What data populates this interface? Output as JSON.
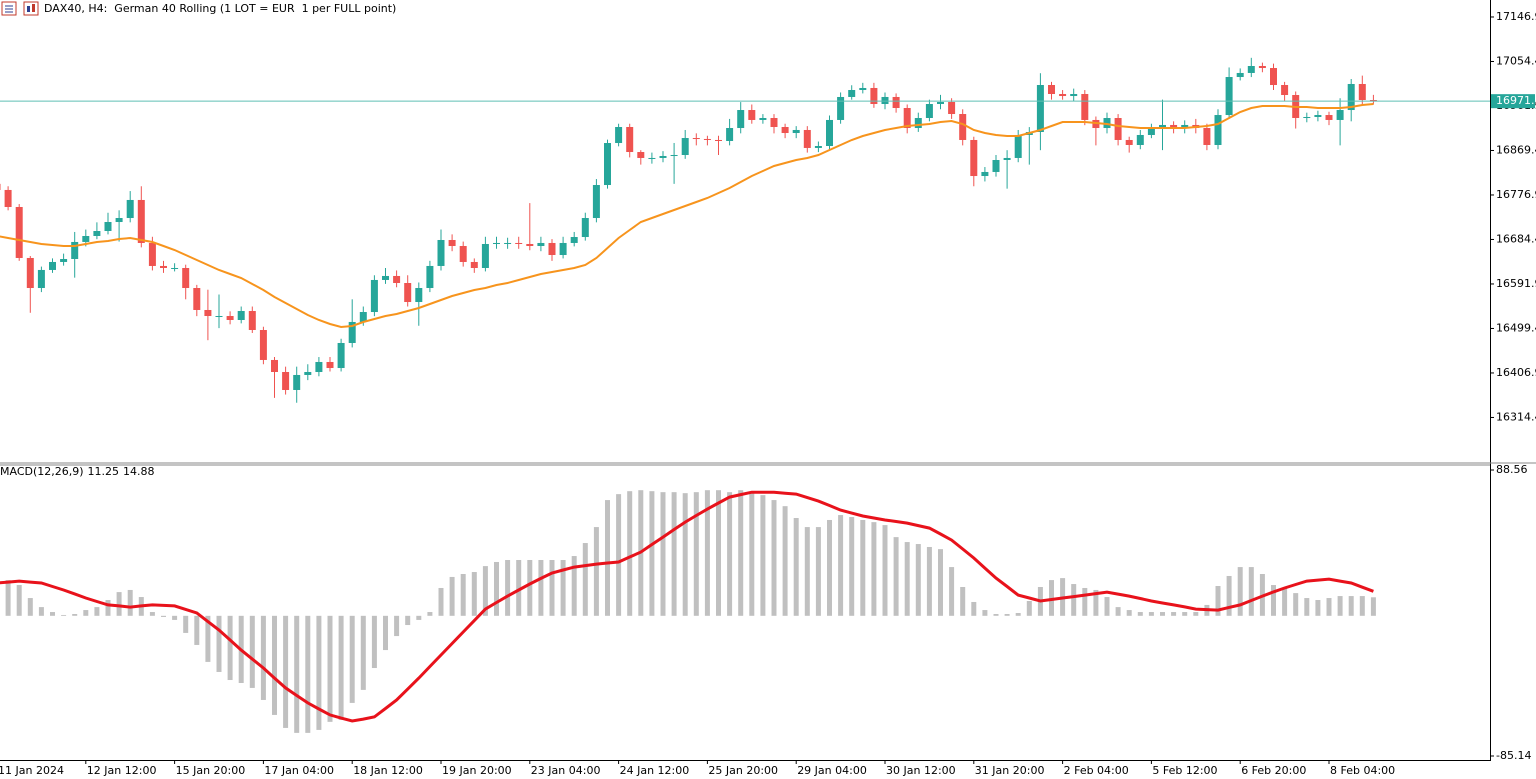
{
  "chart_data": [
    {
      "type": "candlestick",
      "title": "DAX40, H4:  German 40 Rolling (1 LOT = EUR  1 per FULL point)",
      "categories": [
        "11 Jan 2024",
        null,
        null,
        null,
        null,
        null,
        null,
        null,
        "12 Jan 12:00",
        null,
        null,
        null,
        null,
        null,
        null,
        null,
        "15 Jan 20:00",
        null,
        null,
        null,
        null,
        null,
        null,
        null,
        "17 Jan 04:00",
        null,
        null,
        null,
        null,
        null,
        null,
        null,
        "18 Jan 12:00",
        null,
        null,
        null,
        null,
        null,
        null,
        null,
        "19 Jan 20:00",
        null,
        null,
        null,
        null,
        null,
        null,
        null,
        "23 Jan 04:00",
        null,
        null,
        null,
        null,
        null,
        null,
        null,
        "24 Jan 12:00",
        null,
        null,
        null,
        null,
        null,
        null,
        null,
        "25 Jan 20:00",
        null,
        null,
        null,
        null,
        null,
        null,
        null,
        "29 Jan 04:00",
        null,
        null,
        null,
        null,
        null,
        null,
        null,
        "30 Jan 12:00",
        null,
        null,
        null,
        null,
        null,
        null,
        null,
        "31 Jan 20:00",
        null,
        null,
        null,
        null,
        null,
        null,
        null,
        "2 Feb 04:00",
        null,
        null,
        null,
        null,
        null,
        null,
        null,
        "5 Feb 12:00",
        null,
        null,
        null,
        null,
        null,
        null,
        null,
        "6 Feb 20:00",
        null,
        null,
        null,
        null,
        null,
        null,
        null,
        "8 Feb 04:00",
        null,
        null,
        null,
        null
      ],
      "open": [
        16800.0,
        16787.3,
        16751.9,
        16645.9,
        16583.5,
        16621.0,
        16637.6,
        16643.8,
        16679.2,
        16691.6,
        16702.0,
        16720.7,
        16729.0,
        16766.5,
        16677.1,
        16629.3,
        16625.1,
        16625.1,
        16583.5,
        16537.8,
        16525.3,
        16525.3,
        16517.0,
        16535.7,
        16496.2,
        16433.9,
        16408.9,
        16371.5,
        16402.7,
        16408.9,
        16429.7,
        16417.2,
        16469.2,
        16512.9,
        16533.6,
        16600.2,
        16608.5,
        16593.9,
        16554.4,
        16583.5,
        16629.3,
        16683.3,
        16670.8,
        16637.6,
        16625.1,
        16675.0,
        16677.1,
        16677.1,
        16675.0,
        16670.8,
        16677.1,
        16652.1,
        16677.1,
        16689.5,
        16729.0,
        16797.6,
        16884.9,
        16918.2,
        16866.2,
        16853.8,
        16853.8,
        16857.9,
        16860.0,
        16895.3,
        16893.3,
        16891.2,
        16889.1,
        16916.1,
        16953.5,
        16932.8,
        16936.9,
        16918.2,
        16905.7,
        16912.0,
        16874.6,
        16878.7,
        16932.8,
        16980.6,
        16995.1,
        16999.3,
        16966.0,
        16980.6,
        16957.7,
        16916.1,
        16936.9,
        16966.0,
        16970.2,
        16945.2,
        16891.2,
        16816.3,
        16824.7,
        16849.6,
        16853.8,
        16901.6,
        16907.8,
        17005.5,
        16986.8,
        16982.6,
        16986.8,
        16932.8,
        16916.1,
        16936.9,
        16891.2,
        16880.8,
        16901.6,
        16916.1,
        16922.4,
        16916.1,
        16922.4,
        16916.1,
        16880.8,
        16943.1,
        17022.1,
        17030.5,
        17045.0,
        17040.8,
        17005.5,
        16984.7,
        16936.9,
        16939.0,
        16943.1,
        16932.8,
        16953.5,
        17007.6,
        16974.3
      ],
      "high": [
        16815,
        16795,
        16758,
        16650,
        16628,
        16645,
        16655,
        16700,
        16705,
        16720,
        16740,
        16745,
        16785,
        16795,
        16690,
        16640,
        16635,
        16632,
        16590,
        16580,
        16570,
        16535,
        16545,
        16545,
        16503,
        16440,
        16420,
        16420,
        16425,
        16440,
        16440,
        16478,
        16560,
        16545,
        16610,
        16625,
        16620,
        16610,
        16595,
        16640,
        16705,
        16695,
        16680,
        16645,
        16690,
        16690,
        16688,
        16690,
        16760,
        16690,
        16685,
        16690,
        16700,
        16740,
        16810,
        16892,
        16925,
        16925,
        16870,
        16865,
        16868,
        16885,
        16912,
        16905,
        16900,
        16900,
        16935,
        16970,
        16965,
        16945,
        16945,
        16925,
        16920,
        16920,
        16888,
        16942,
        16990,
        17005,
        17010,
        17010,
        16990,
        16988,
        16965,
        16948,
        16975,
        16985,
        16978,
        16955,
        16898,
        16835,
        16860,
        16870,
        16912,
        16918,
        17030,
        17012,
        16995,
        16998,
        16995,
        16940,
        16948,
        16945,
        16898,
        16912,
        16925,
        16975,
        16930,
        16932,
        16935,
        16925,
        16955,
        17042,
        17040,
        17062,
        17052,
        17050,
        17012,
        16992,
        16948,
        16952,
        16950,
        16978,
        17018,
        17025,
        16985
      ],
      "low": [
        16778,
        16745,
        16640,
        16532,
        16575,
        16615,
        16630,
        16605,
        16670,
        16685,
        16695,
        16680,
        16720,
        16668,
        16620,
        16615,
        16618,
        16560,
        16525,
        16475,
        16500,
        16508,
        16510,
        16490,
        16425,
        16355,
        16362,
        16345,
        16392,
        16400,
        16410,
        16410,
        16460,
        16505,
        16525,
        16592,
        16585,
        16545,
        16505,
        16575,
        16620,
        16660,
        16628,
        16615,
        16618,
        16665,
        16665,
        16665,
        16662,
        16660,
        16640,
        16645,
        16670,
        16682,
        16720,
        16790,
        16878,
        16855,
        16840,
        16842,
        16845,
        16800,
        16852,
        16880,
        16880,
        16860,
        16880,
        16905,
        16925,
        16925,
        16905,
        16895,
        16895,
        16865,
        16866,
        16870,
        16925,
        16975,
        16988,
        16958,
        16955,
        16948,
        16905,
        16908,
        16930,
        16955,
        16935,
        16880,
        16795,
        16805,
        16815,
        16790,
        16845,
        16840,
        16870,
        16975,
        16975,
        16972,
        16922,
        16880,
        16905,
        16880,
        16865,
        16872,
        16895,
        16870,
        16905,
        16905,
        16905,
        16870,
        16872,
        16935,
        17015,
        17022,
        17032,
        16995,
        16972,
        16915,
        16928,
        16930,
        16922,
        16880,
        16930,
        16965,
        16965
      ],
      "close": [
        16787.3,
        16751.9,
        16645.9,
        16583.5,
        16621.0,
        16637.6,
        16643.8,
        16679.2,
        16691.6,
        16702.0,
        16720.7,
        16729.0,
        16766.5,
        16677.1,
        16629.3,
        16625.1,
        16625.1,
        16583.5,
        16537.8,
        16525.3,
        16525.3,
        16517.0,
        16535.7,
        16496.2,
        16433.9,
        16408.9,
        16371.5,
        16402.7,
        16408.9,
        16429.7,
        16417.2,
        16469.2,
        16512.9,
        16533.6,
        16600.2,
        16608.5,
        16593.9,
        16554.4,
        16583.5,
        16629.3,
        16683.3,
        16670.8,
        16637.6,
        16625.1,
        16675.0,
        16677.1,
        16677.1,
        16675.0,
        16670.8,
        16677.1,
        16652.1,
        16677.1,
        16689.5,
        16729.0,
        16797.6,
        16884.9,
        16918.2,
        16866.2,
        16853.8,
        16853.8,
        16857.9,
        16860.0,
        16895.3,
        16893.3,
        16891.2,
        16889.1,
        16916.1,
        16953.5,
        16932.8,
        16936.9,
        16918.2,
        16905.7,
        16912.0,
        16874.6,
        16878.7,
        16932.8,
        16980.6,
        16995.1,
        16999.3,
        16966.0,
        16980.6,
        16957.7,
        16916.1,
        16936.9,
        16966.0,
        16970.2,
        16945.2,
        16891.2,
        16816.3,
        16824.7,
        16849.6,
        16853.8,
        16901.6,
        16907.8,
        17005.5,
        16986.8,
        16982.6,
        16986.8,
        16932.8,
        16916.1,
        16936.9,
        16891.2,
        16880.8,
        16901.6,
        16916.1,
        16922.4,
        16916.1,
        16922.4,
        16916.1,
        16880.8,
        16943.1,
        17022.1,
        17030.5,
        17045.0,
        17040.8,
        17005.5,
        16984.7,
        16936.9,
        16939.0,
        16943.1,
        16932.8,
        16953.5,
        17007.6,
        16974.3,
        16971.9
      ],
      "up_color": "#26a69a",
      "down_color": "#ef5350",
      "ma": {
        "color": "#f7941d",
        "values": [
          16691.6,
          16687.5,
          16683.3,
          16679.2,
          16675.0,
          16672.9,
          16670.8,
          16670.8,
          16675.0,
          16679.2,
          16681.2,
          16685.4,
          16687.5,
          16683.3,
          16679.2,
          16670.8,
          16662.5,
          16652.1,
          16641.7,
          16631.3,
          16621.0,
          16612.6,
          16604.3,
          16591.8,
          16579.4,
          16564.8,
          16552.4,
          16539.9,
          16527.4,
          16517.0,
          16508.7,
          16502.5,
          16504.5,
          16512.9,
          16519.1,
          16525.3,
          16529.5,
          16535.7,
          16542.0,
          16550.3,
          16558.6,
          16566.9,
          16573.1,
          16579.4,
          16583.5,
          16589.8,
          16593.9,
          16600.2,
          16606.4,
          16612.6,
          16616.8,
          16621.0,
          16625.1,
          16631.3,
          16645.9,
          16666.7,
          16687.5,
          16704.1,
          16720.7,
          16729.0,
          16737.4,
          16745.7,
          16754.0,
          16762.3,
          16770.6,
          16781.0,
          16791.4,
          16803.9,
          16816.3,
          16826.7,
          16837.1,
          16843.4,
          16849.6,
          16853.8,
          16860.0,
          16870.4,
          16880.8,
          16891.2,
          16899.5,
          16905.7,
          16912.0,
          16916.1,
          16920.3,
          16922.4,
          16924.4,
          16928.6,
          16930.7,
          16924.4,
          16912.0,
          16905.7,
          16901.6,
          16899.5,
          16899.5,
          16905.7,
          16912.0,
          16920.3,
          16928.6,
          16928.6,
          16928.6,
          16926.5,
          16924.4,
          16920.3,
          16918.2,
          16916.1,
          16916.1,
          16916.1,
          16916.1,
          16916.1,
          16918.2,
          16920.3,
          16924.4,
          16936.9,
          16949.4,
          16957.7,
          16961.9,
          16961.9,
          16961.9,
          16959.8,
          16959.8,
          16957.7,
          16957.7,
          16957.7,
          16959.8,
          16963.9,
          16966.0
        ]
      },
      "price_line_color": "#5fbfb5",
      "ylim": [
        16221.8,
        17182.2
      ],
      "yticks": [
        17146.9,
        17054.4,
        16961.9,
        16869.4,
        16776.9,
        16684.4,
        16591.9,
        16499.4,
        16406.9,
        16314.4
      ]
    },
    {
      "type": "macd",
      "title": "MACD(12,26,9)",
      "histogram": {
        "color": "#c0c0c0",
        "values": [
          22.9,
          21.7,
          18.7,
          10.8,
          5.3,
          2.3,
          0.5,
          1.1,
          3.5,
          5.3,
          9.6,
          14.4,
          15.7,
          11.4,
          2.3,
          -0.7,
          -2.5,
          -10.4,
          -17.7,
          -28.0,
          -34.1,
          -39.0,
          -40.8,
          -43.8,
          -51.1,
          -60.2,
          -68.1,
          -71.1,
          -71.1,
          -69.3,
          -64.4,
          -63.2,
          -52.9,
          -45.0,
          -31.7,
          -20.8,
          -12.3,
          -5.6,
          -2.5,
          2.3,
          16.9,
          23.6,
          25.4,
          26.6,
          30.2,
          32.7,
          33.9,
          33.9,
          33.9,
          33.9,
          33.9,
          33.9,
          36.3,
          44.2,
          53.9,
          70.3,
          73.9,
          75.7,
          76.3,
          75.7,
          75.1,
          75.1,
          74.5,
          75.1,
          76.3,
          76.3,
          75.1,
          76.3,
          74.5,
          73.3,
          70.3,
          66.6,
          59.4,
          53.9,
          53.9,
          58.2,
          61.2,
          60.0,
          58.2,
          56.9,
          55.1,
          47.8,
          44.8,
          43.6,
          41.8,
          40.5,
          29.6,
          17.5,
          8.4,
          3.5,
          1.1,
          1.1,
          1.7,
          9.0,
          17.5,
          21.7,
          22.9,
          19.3,
          16.9,
          15.7,
          11.4,
          5.3,
          3.5,
          2.3,
          2.3,
          2.3,
          2.3,
          2.3,
          2.3,
          6.6,
          18.1,
          24.2,
          29.6,
          29.6,
          25.4,
          18.7,
          16.9,
          13.8,
          10.8,
          9.6,
          10.8,
          12.0,
          12.0,
          12.0,
          11.25
        ]
      },
      "signal": {
        "color": "#e8121b",
        "values": [
          19.9,
          20.5,
          21.1,
          20.5,
          19.9,
          17.8,
          15.7,
          13.3,
          10.8,
          8.7,
          6.6,
          6.0,
          5.3,
          6.0,
          6.6,
          6.3,
          6.0,
          3.9,
          1.7,
          -3.5,
          -8.6,
          -14.7,
          -20.8,
          -26.3,
          -31.7,
          -37.8,
          -43.8,
          -48.4,
          -52.9,
          -56.6,
          -60.2,
          -62.1,
          -63.9,
          -62.7,
          -61.4,
          -56.3,
          -51.1,
          -44.5,
          -37.8,
          -30.8,
          -23.8,
          -16.8,
          -9.8,
          -2.9,
          4.1,
          8.1,
          12.0,
          15.7,
          19.3,
          22.7,
          26.0,
          27.8,
          29.6,
          30.5,
          31.4,
          32.1,
          32.7,
          35.7,
          38.7,
          43.3,
          47.8,
          52.4,
          56.9,
          60.9,
          64.8,
          68.5,
          72.1,
          73.6,
          75.1,
          75.1,
          75.1,
          74.5,
          73.9,
          71.8,
          69.7,
          67.0,
          64.2,
          62.4,
          60.6,
          59.4,
          58.2,
          57.3,
          56.3,
          54.8,
          53.3,
          49.7,
          46.0,
          40.6,
          35.1,
          29.0,
          22.9,
          17.8,
          12.6,
          10.8,
          9.0,
          9.9,
          10.8,
          11.7,
          12.6,
          13.5,
          14.4,
          13.2,
          12.0,
          10.5,
          9.0,
          7.8,
          6.6,
          5.4,
          4.1,
          3.8,
          3.5,
          5.1,
          6.6,
          9.3,
          12.0,
          14.5,
          16.9,
          19.0,
          21.1,
          21.7,
          22.3,
          21.1,
          19.9,
          17.4,
          14.88
        ]
      },
      "ylim": [
        -85.14,
        88.56
      ],
      "yticks": [
        88.56,
        -85.14
      ]
    }
  ]
}
